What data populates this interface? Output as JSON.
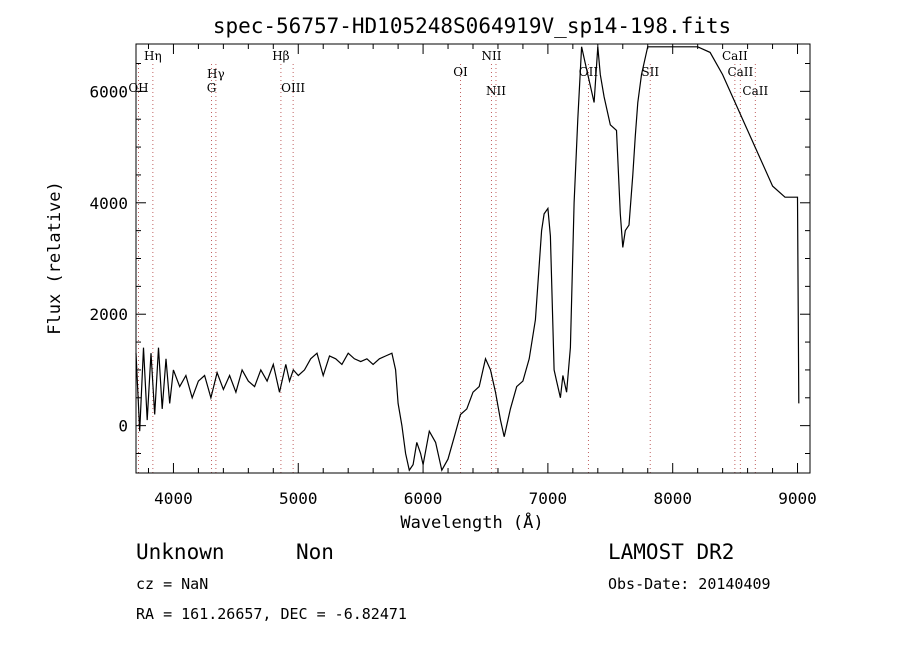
{
  "chart_data": {
    "type": "line",
    "title": "spec-56757-HD105248S064919V_sp14-198.fits",
    "xlabel": "Wavelength (Å)",
    "ylabel": "Flux (relative)",
    "xlim": [
      3700,
      9100
    ],
    "ylim": [
      -850,
      6850
    ],
    "xticks": [
      4000,
      5000,
      6000,
      7000,
      8000,
      9000
    ],
    "yticks": [
      0,
      2000,
      4000,
      6000
    ],
    "grid": false,
    "series": [
      {
        "x": [
          3700,
          3730,
          3760,
          3790,
          3820,
          3850,
          3880,
          3910,
          3940,
          3970,
          4000,
          4050,
          4100,
          4150,
          4200,
          4250,
          4300,
          4350,
          4400,
          4450,
          4500,
          4550,
          4600,
          4650,
          4700,
          4750,
          4800,
          4850,
          4880,
          4900,
          4930,
          4960,
          5000,
          5050,
          5100,
          5150,
          5200,
          5250,
          5300,
          5350,
          5400,
          5450,
          5500,
          5550,
          5600,
          5650,
          5700,
          5750,
          5780,
          5800,
          5830,
          5860,
          5890,
          5920,
          5950,
          5980,
          6000,
          6050,
          6100,
          6150,
          6200,
          6250,
          6300,
          6350,
          6400,
          6450,
          6500,
          6540,
          6560,
          6580,
          6620,
          6650,
          6700,
          6750,
          6800,
          6850,
          6900,
          6950,
          6970,
          7000,
          7020,
          7050,
          7070,
          7100,
          7120,
          7150,
          7180,
          7210,
          7240,
          7270,
          7300,
          7330,
          7370,
          7400,
          7420,
          7450,
          7500,
          7550,
          7580,
          7600,
          7620,
          7650,
          7680,
          7700,
          7720,
          7750,
          7800,
          7850,
          7900,
          7920,
          7950,
          8000,
          8100,
          8200,
          8300,
          8400,
          8500,
          8600,
          8700,
          8800,
          8900,
          9000,
          9010
        ],
        "y": [
          1300,
          -100,
          1400,
          100,
          1300,
          200,
          1400,
          300,
          1200,
          400,
          1000,
          700,
          900,
          500,
          800,
          900,
          500,
          950,
          650,
          900,
          600,
          1000,
          800,
          700,
          1000,
          800,
          1100,
          600,
          900,
          1100,
          800,
          1000,
          900,
          1000,
          1200,
          1300,
          900,
          1250,
          1200,
          1100,
          1300,
          1200,
          1150,
          1200,
          1100,
          1200,
          1250,
          1300,
          1000,
          400,
          0,
          -500,
          -800,
          -700,
          -300,
          -500,
          -700,
          -100,
          -300,
          -800,
          -600,
          -200,
          200,
          300,
          600,
          700,
          1200,
          1000,
          800,
          600,
          100,
          -200,
          300,
          700,
          800,
          1200,
          1900,
          3500,
          3800,
          3900,
          3400,
          1000,
          800,
          500,
          900,
          600,
          1400,
          4000,
          5500,
          6800,
          6500,
          6200,
          5800,
          6800,
          6300,
          5900,
          5400,
          5300,
          3800,
          3200,
          3500,
          3600,
          4500,
          5200,
          5800,
          6300,
          6800,
          6800,
          6800,
          6800,
          6800,
          6800,
          6800,
          6800,
          6700,
          6300,
          5800,
          5300,
          4800,
          4300,
          4100,
          4100,
          400
        ]
      }
    ],
    "annotations": [
      {
        "text": "Hη",
        "x": 3835
      },
      {
        "text": "OH",
        "x": 3720
      },
      {
        "text": "Hγ",
        "x": 4340
      },
      {
        "text": "G",
        "x": 4305
      },
      {
        "text": "Hβ",
        "x": 4861
      },
      {
        "text": "OIII",
        "x": 4959
      },
      {
        "text": "OI",
        "x": 6300
      },
      {
        "text": "NII",
        "x": 6548
      },
      {
        "text": "NII",
        "x": 6584
      },
      {
        "text": "OII",
        "x": 7325
      },
      {
        "text": "SII",
        "x": 7820
      },
      {
        "text": "CaII",
        "x": 8498
      },
      {
        "text": "CaII",
        "x": 8542
      },
      {
        "text": "CaII",
        "x": 8662
      }
    ],
    "linecolors": {
      "fe_marker": "#555555",
      "blue_marker": "#3333cc"
    }
  },
  "info": {
    "class": "Unknown",
    "subclass": "Non",
    "survey": "LAMOST DR2",
    "cz": "cz = NaN",
    "obsdate": "Obs-Date: 20140409",
    "coords": "RA = 161.26657, DEC =  -6.82471"
  }
}
